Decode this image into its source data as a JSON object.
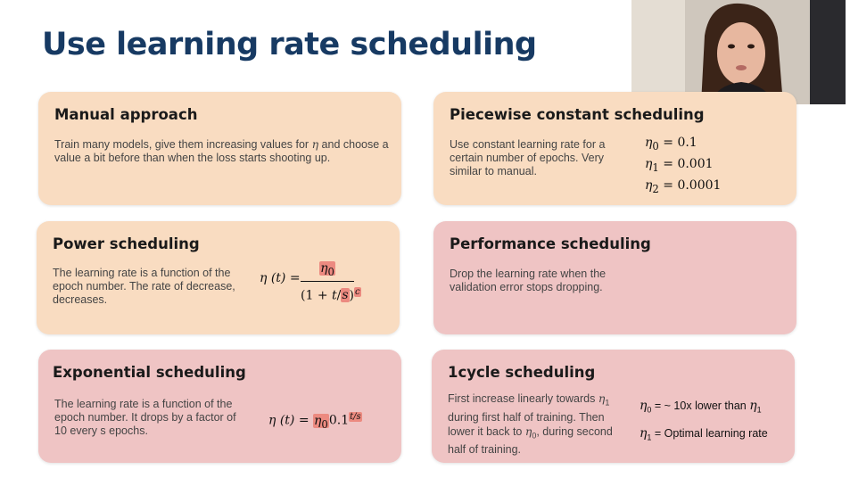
{
  "title": "Use learning rate scheduling",
  "cards": {
    "manual": {
      "title": "Manual approach",
      "text_before": "Train many models, give them increasing values for ",
      "text_eta": "η",
      "text_after": " and choose a value a bit before than when the loss starts shooting up."
    },
    "piecewise": {
      "title": "Piecewise constant scheduling",
      "text": "Use constant learning rate for a certain number of epochs. Very similar to manual.",
      "eq": [
        "η0 = 0.1",
        "η1 = 0.001",
        "η2 = 0.0001"
      ],
      "eta": "η",
      "subs": [
        "0",
        "1",
        "2"
      ],
      "vals": [
        "0.1",
        "0.001",
        "0.0001"
      ]
    },
    "power": {
      "title": "Power scheduling",
      "text": "The learning rate is a function of the epoch number. The rate of decrease, decreases.",
      "lhs": "η (t) =",
      "numerator": "η0",
      "denominator": "(1 + t/s)",
      "exponent": "c",
      "sub0": "0"
    },
    "performance": {
      "title": "Performance scheduling",
      "text": "Drop the learning rate when the validation error stops dropping."
    },
    "exponential": {
      "title": "Exponential scheduling",
      "text": "The learning rate is a function of the epoch number. It drops by a factor of 10 every s epochs.",
      "lhs": "η (t) =",
      "eta0": "η0",
      "base": "0.1",
      "exponent": "t/s",
      "sub0": "0"
    },
    "onecycle": {
      "title": "1cycle scheduling",
      "text_a": "First increase linearly towards ",
      "text_b": " during first half of training. Then lower it back to ",
      "text_c": ", during second half of training.",
      "eta": "η",
      "eq1_rhs": "= ~ 10x lower than ",
      "eq2_rhs": "= Optimal learning rate",
      "sub0": "0",
      "sub1": "1"
    }
  },
  "colors": {
    "title": "#173a63",
    "peach": "#f9dcc1",
    "pink": "#efc4c4",
    "highlight": "#ec8a80"
  }
}
